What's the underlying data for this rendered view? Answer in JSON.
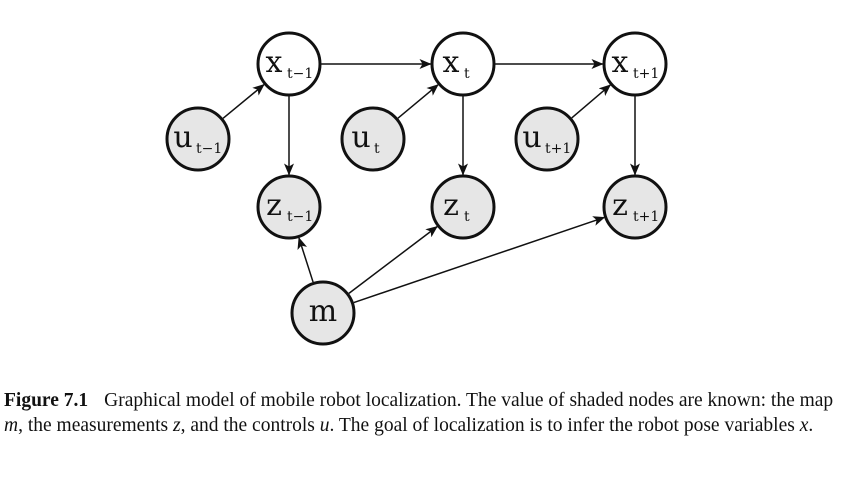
{
  "diagram": {
    "nodes": [
      {
        "id": "x_prev",
        "main": "x",
        "sub": "t−1",
        "shaded": false
      },
      {
        "id": "x_t",
        "main": "x",
        "sub": "t",
        "shaded": false
      },
      {
        "id": "x_next",
        "main": "x",
        "sub": "t+1",
        "shaded": false
      },
      {
        "id": "u_prev",
        "main": "u",
        "sub": "t−1",
        "shaded": true
      },
      {
        "id": "u_t",
        "main": "u",
        "sub": "t",
        "shaded": true
      },
      {
        "id": "u_next",
        "main": "u",
        "sub": "t+1",
        "shaded": true
      },
      {
        "id": "z_prev",
        "main": "z",
        "sub": "t−1",
        "shaded": true
      },
      {
        "id": "z_t",
        "main": "z",
        "sub": "t",
        "shaded": true
      },
      {
        "id": "z_next",
        "main": "z",
        "sub": "t+1",
        "shaded": true
      },
      {
        "id": "m",
        "main": "m",
        "sub": "",
        "shaded": true
      }
    ],
    "edges": [
      {
        "from": "x_prev",
        "to": "x_t"
      },
      {
        "from": "x_t",
        "to": "x_next"
      },
      {
        "from": "u_prev",
        "to": "x_prev"
      },
      {
        "from": "u_t",
        "to": "x_t"
      },
      {
        "from": "u_next",
        "to": "x_next"
      },
      {
        "from": "x_prev",
        "to": "z_prev"
      },
      {
        "from": "x_t",
        "to": "z_t"
      },
      {
        "from": "x_next",
        "to": "z_next"
      },
      {
        "from": "m",
        "to": "z_prev"
      },
      {
        "from": "m",
        "to": "z_t"
      },
      {
        "from": "m",
        "to": "z_next"
      }
    ]
  },
  "caption": {
    "label": "Figure 7.1",
    "text_1": "Graphical model of mobile robot localization. The value of shaded nodes are known: the map ",
    "var_m": "m",
    "text_2": ", the measurements ",
    "var_z": "z",
    "text_3": ", and the controls ",
    "var_u": "u",
    "text_4": ". The goal of localization is to infer the robot pose variables ",
    "var_x": "x",
    "text_5": "."
  }
}
